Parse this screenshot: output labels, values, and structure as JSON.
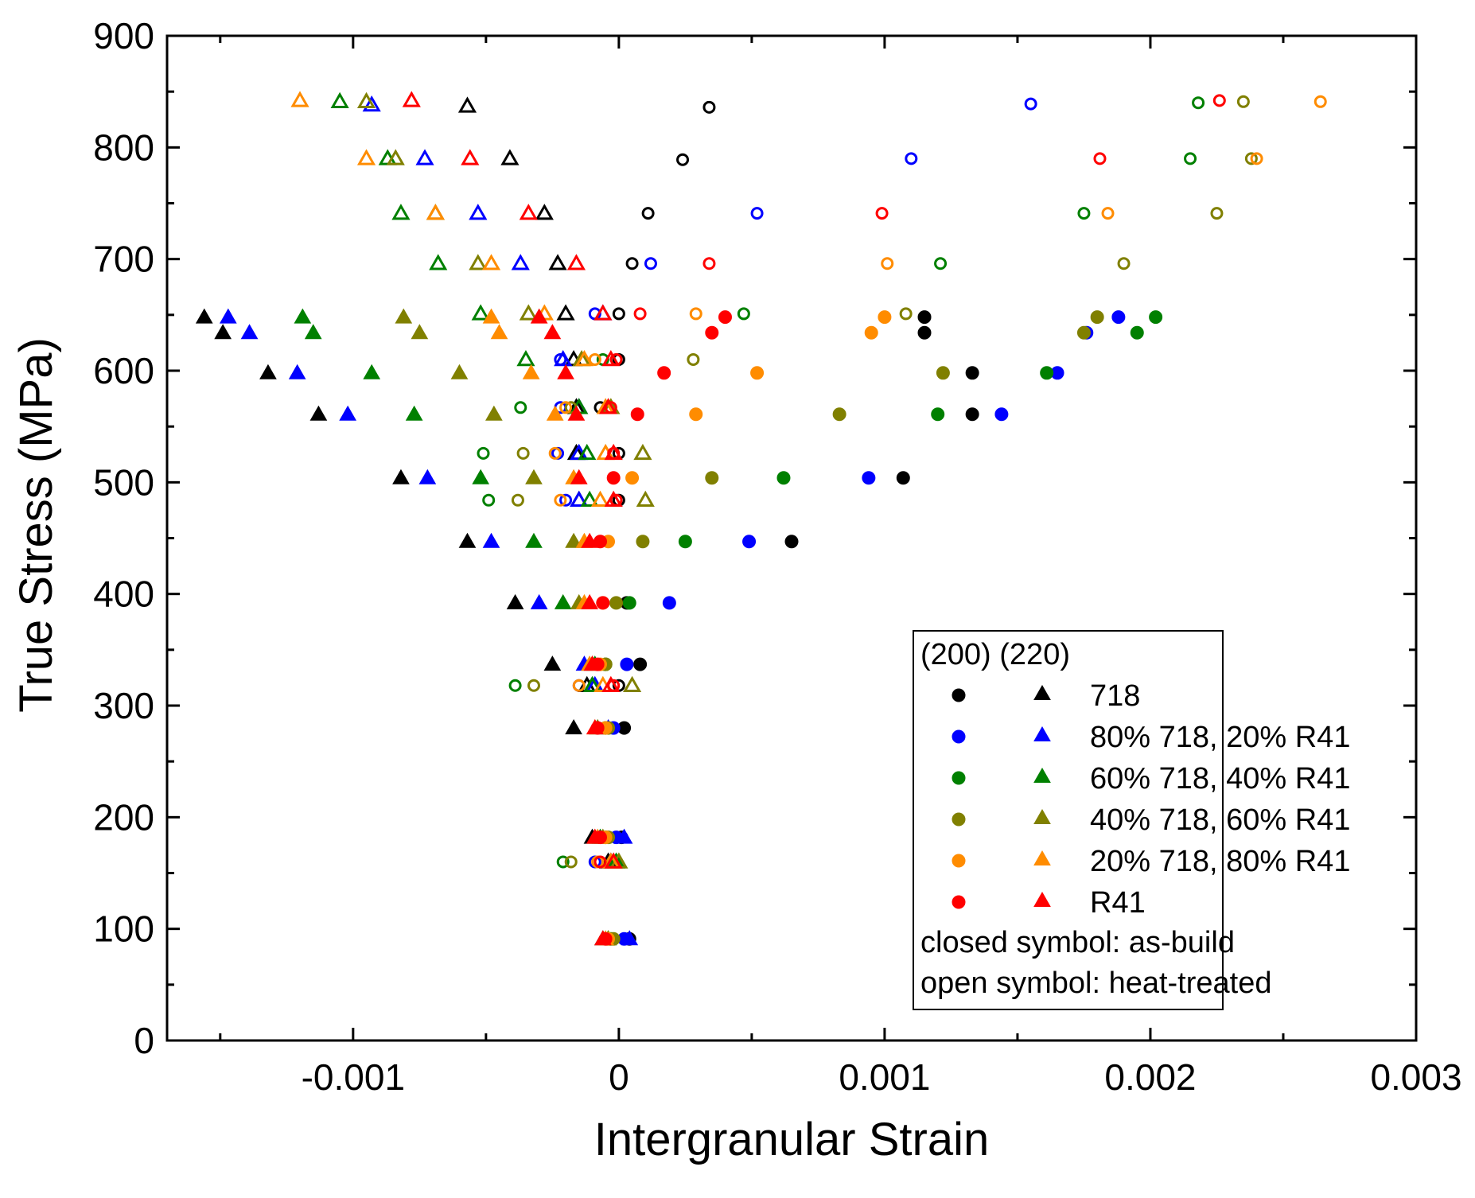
{
  "chart_data": {
    "type": "scatter",
    "title": "",
    "xlabel": "Intergranular Strain",
    "ylabel": "True Stress (MPa)",
    "xlim": [
      -0.0017,
      0.003
    ],
    "ylim": [
      0,
      900
    ],
    "xticks": [
      -0.001,
      0,
      0.001,
      0.002,
      0.003
    ],
    "xtick_labels": [
      "-0.001",
      "0",
      "0.001",
      "0.002",
      "0.003"
    ],
    "yticks": [
      0,
      100,
      200,
      300,
      400,
      500,
      600,
      700,
      800,
      900
    ],
    "ytick_labels": [
      "0",
      "100",
      "200",
      "300",
      "400",
      "500",
      "600",
      "700",
      "800",
      "900"
    ],
    "legend": {
      "placement": "bottom-right",
      "header": "(200) (220)",
      "entries": [
        "718",
        "80% 718, 20% R41",
        "60% 718, 40% R41",
        "40% 718, 60% R41",
        "20% 718, 80% R41",
        "R41"
      ],
      "note_closed": "closed symbol: as-build",
      "note_open": "open symbol: heat-treated"
    },
    "series": [
      {
        "name": "718",
        "color": "#000000",
        "as_built_200": [
          [
            4e-05,
            91
          ],
          [
            1e-05,
            182
          ],
          [
            2e-05,
            280
          ],
          [
            8e-05,
            337
          ],
          [
            3e-05,
            392
          ],
          [
            0.00065,
            447
          ],
          [
            0.00107,
            504
          ],
          [
            0.00133,
            561
          ],
          [
            0.00133,
            598
          ],
          [
            0.00115,
            634
          ],
          [
            0.00115,
            648
          ]
        ],
        "as_built_220": [
          [
            -6e-05,
            91
          ],
          [
            -0.0001,
            182
          ],
          [
            -0.00017,
            280
          ],
          [
            -0.00025,
            337
          ],
          [
            -0.00039,
            392
          ],
          [
            -0.00057,
            447
          ],
          [
            -0.00082,
            504
          ],
          [
            -0.00113,
            561
          ],
          [
            -0.00132,
            598
          ],
          [
            -0.00149,
            634
          ],
          [
            -0.00156,
            648
          ]
        ],
        "heat_treated_200": [
          [
            -2e-05,
            160
          ],
          [
            0.0,
            318
          ],
          [
            0.0,
            484
          ],
          [
            0.0,
            526
          ],
          [
            -7e-05,
            567
          ],
          [
            0.0,
            610
          ],
          [
            0.0,
            651
          ],
          [
            5e-05,
            696
          ],
          [
            0.00011,
            741
          ],
          [
            0.00024,
            789
          ],
          [
            0.00034,
            836
          ]
        ],
        "heat_treated_220": [
          [
            -4e-05,
            160
          ],
          [
            -0.00012,
            318
          ],
          [
            -0.00015,
            484
          ],
          [
            -0.00016,
            526
          ],
          [
            -0.00016,
            567
          ],
          [
            -0.00017,
            610
          ],
          [
            -0.0002,
            651
          ],
          [
            -0.00023,
            696
          ],
          [
            -0.00028,
            741
          ],
          [
            -0.00041,
            790
          ],
          [
            -0.00057,
            837
          ]
        ]
      },
      {
        "name": "80% 718, 20% R41",
        "color": "#0000ff",
        "as_built_200": [
          [
            2e-05,
            91
          ],
          [
            -1e-05,
            182
          ],
          [
            -2e-05,
            280
          ],
          [
            3e-05,
            337
          ],
          [
            0.00019,
            392
          ],
          [
            0.00049,
            447
          ],
          [
            0.00094,
            504
          ],
          [
            0.00144,
            561
          ],
          [
            0.00165,
            598
          ],
          [
            0.00176,
            634
          ],
          [
            0.00188,
            648
          ]
        ],
        "as_built_220": [
          [
            4e-05,
            91
          ],
          [
            2e-05,
            182
          ],
          [
            -4e-05,
            280
          ],
          [
            -0.00013,
            337
          ],
          [
            -0.0003,
            392
          ],
          [
            -0.00048,
            447
          ],
          [
            -0.00072,
            504
          ],
          [
            -0.00102,
            561
          ],
          [
            -0.00121,
            598
          ],
          [
            -0.00139,
            634
          ],
          [
            -0.00147,
            648
          ]
        ],
        "heat_treated_200": [
          [
            -9e-05,
            160
          ],
          [
            -0.00015,
            318
          ],
          [
            -0.0002,
            484
          ],
          [
            -0.00023,
            526
          ],
          [
            -0.00022,
            567
          ],
          [
            -0.00022,
            610
          ],
          [
            -9e-05,
            651
          ],
          [
            0.00012,
            696
          ],
          [
            0.00052,
            741
          ],
          [
            0.0011,
            790
          ],
          [
            0.00155,
            839
          ]
        ],
        "heat_treated_220": [
          [
            -3e-05,
            160
          ],
          [
            -9e-05,
            318
          ],
          [
            -0.00015,
            484
          ],
          [
            -0.00015,
            526
          ],
          [
            -0.00015,
            567
          ],
          [
            -0.00021,
            610
          ],
          [
            -6e-05,
            651
          ],
          [
            -0.00037,
            696
          ],
          [
            -0.00053,
            741
          ],
          [
            -0.00073,
            790
          ],
          [
            -0.00093,
            838
          ]
        ]
      },
      {
        "name": "60% 718, 40% R41",
        "color": "#008000",
        "as_built_200": [
          [
            -3e-05,
            91
          ],
          [
            -5e-05,
            182
          ],
          [
            -5e-05,
            280
          ],
          [
            -5e-05,
            337
          ],
          [
            4e-05,
            392
          ],
          [
            0.00025,
            447
          ],
          [
            0.00062,
            504
          ],
          [
            0.0012,
            561
          ],
          [
            0.00161,
            598
          ],
          [
            0.00195,
            634
          ],
          [
            0.00202,
            648
          ]
        ],
        "as_built_220": [
          [
            -4e-05,
            91
          ],
          [
            -7e-05,
            182
          ],
          [
            -8e-05,
            280
          ],
          [
            -9e-05,
            337
          ],
          [
            -0.00021,
            392
          ],
          [
            -0.00032,
            447
          ],
          [
            -0.00052,
            504
          ],
          [
            -0.00077,
            561
          ],
          [
            -0.00093,
            598
          ],
          [
            -0.00115,
            634
          ],
          [
            -0.00119,
            648
          ]
        ],
        "heat_treated_200": [
          [
            -0.00021,
            160
          ],
          [
            -0.00039,
            318
          ],
          [
            -0.00049,
            484
          ],
          [
            -0.00051,
            526
          ],
          [
            -0.00037,
            567
          ],
          [
            -6e-05,
            610
          ],
          [
            0.00047,
            651
          ],
          [
            0.00121,
            696
          ],
          [
            0.00175,
            741
          ],
          [
            0.00215,
            790
          ],
          [
            0.00218,
            840
          ]
        ],
        "heat_treated_220": [
          [
            -1e-05,
            160
          ],
          [
            -0.0001,
            318
          ],
          [
            -0.00011,
            484
          ],
          [
            -0.00012,
            526
          ],
          [
            -0.00015,
            567
          ],
          [
            -0.00035,
            610
          ],
          [
            -0.00052,
            651
          ],
          [
            -0.00068,
            696
          ],
          [
            -0.00082,
            741
          ],
          [
            -0.00087,
            790
          ],
          [
            -0.00105,
            841
          ]
        ]
      },
      {
        "name": "40% 718, 60% R41",
        "color": "#808000",
        "as_built_200": [
          [
            -2e-05,
            91
          ],
          [
            -4e-05,
            182
          ],
          [
            -4e-05,
            280
          ],
          [
            -5e-05,
            337
          ],
          [
            -1e-05,
            392
          ],
          [
            9e-05,
            447
          ],
          [
            0.00035,
            504
          ],
          [
            0.00083,
            561
          ],
          [
            0.00122,
            598
          ],
          [
            0.00175,
            634
          ],
          [
            0.0018,
            648
          ]
        ],
        "as_built_220": [
          [
            -4e-05,
            91
          ],
          [
            -6e-05,
            182
          ],
          [
            -8e-05,
            280
          ],
          [
            -0.0001,
            337
          ],
          [
            -0.00015,
            392
          ],
          [
            -0.00017,
            447
          ],
          [
            -0.00032,
            504
          ],
          [
            -0.00047,
            561
          ],
          [
            -0.0006,
            598
          ],
          [
            -0.00075,
            634
          ],
          [
            -0.00081,
            648
          ]
        ],
        "heat_treated_200": [
          [
            -0.00018,
            160
          ],
          [
            -0.00032,
            318
          ],
          [
            -0.00038,
            484
          ],
          [
            -0.00036,
            526
          ],
          [
            -0.00018,
            567
          ],
          [
            0.00028,
            610
          ],
          [
            0.00108,
            651
          ],
          [
            0.0019,
            696
          ],
          [
            0.00225,
            741
          ],
          [
            0.00238,
            790
          ],
          [
            0.00235,
            841
          ]
        ],
        "heat_treated_220": [
          [
            0.0,
            160
          ],
          [
            5e-05,
            318
          ],
          [
            0.0001,
            484
          ],
          [
            9e-05,
            526
          ],
          [
            -3e-05,
            567
          ],
          [
            -0.00014,
            610
          ],
          [
            -0.00034,
            651
          ],
          [
            -0.00053,
            696
          ],
          [
            -0.00069,
            741
          ],
          [
            -0.00084,
            790
          ],
          [
            -0.00095,
            841
          ]
        ]
      },
      {
        "name": "20% 718, 80% R41",
        "color": "#ff8c00",
        "as_built_200": [
          [
            -4e-05,
            91
          ],
          [
            -5e-05,
            182
          ],
          [
            -5e-05,
            280
          ],
          [
            -7e-05,
            337
          ],
          [
            -6e-05,
            392
          ],
          [
            -4e-05,
            447
          ],
          [
            5e-05,
            504
          ],
          [
            0.00029,
            561
          ],
          [
            0.00052,
            598
          ],
          [
            0.00095,
            634
          ],
          [
            0.001,
            648
          ]
        ],
        "as_built_220": [
          [
            -5e-05,
            91
          ],
          [
            -8e-05,
            182
          ],
          [
            -9e-05,
            280
          ],
          [
            -0.00011,
            337
          ],
          [
            -0.00013,
            392
          ],
          [
            -0.00013,
            447
          ],
          [
            -0.00017,
            504
          ],
          [
            -0.00024,
            561
          ],
          [
            -0.00033,
            598
          ],
          [
            -0.00045,
            634
          ],
          [
            -0.00048,
            648
          ]
        ],
        "heat_treated_200": [
          [
            -8e-05,
            160
          ],
          [
            -0.00015,
            318
          ],
          [
            -0.00022,
            484
          ],
          [
            -0.00024,
            526
          ],
          [
            -0.0002,
            567
          ],
          [
            -9e-05,
            610
          ],
          [
            0.00029,
            651
          ],
          [
            0.00101,
            696
          ],
          [
            0.00184,
            741
          ],
          [
            0.0024,
            790
          ],
          [
            0.00264,
            841
          ]
        ],
        "heat_treated_220": [
          [
            -3e-05,
            160
          ],
          [
            -6e-05,
            318
          ],
          [
            -7e-05,
            484
          ],
          [
            -5e-05,
            526
          ],
          [
            -5e-05,
            567
          ],
          [
            -0.00013,
            610
          ],
          [
            -0.00028,
            651
          ],
          [
            -0.00048,
            696
          ],
          [
            -0.00069,
            741
          ],
          [
            -0.00095,
            790
          ],
          [
            -0.0012,
            842
          ]
        ]
      },
      {
        "name": "R41",
        "color": "#ff0000",
        "as_built_200": [
          [
            -5e-05,
            91
          ],
          [
            -7e-05,
            182
          ],
          [
            -8e-05,
            280
          ],
          [
            -8e-05,
            337
          ],
          [
            -6e-05,
            392
          ],
          [
            -7e-05,
            447
          ],
          [
            -2e-05,
            504
          ],
          [
            7e-05,
            561
          ],
          [
            0.00017,
            598
          ],
          [
            0.00035,
            634
          ],
          [
            0.0004,
            648
          ]
        ],
        "as_built_220": [
          [
            -6e-05,
            91
          ],
          [
            -9e-05,
            182
          ],
          [
            -9e-05,
            280
          ],
          [
            -0.0001,
            337
          ],
          [
            -0.00011,
            392
          ],
          [
            -0.00011,
            447
          ],
          [
            -0.00015,
            504
          ],
          [
            -0.00016,
            561
          ],
          [
            -0.0002,
            598
          ],
          [
            -0.00025,
            634
          ],
          [
            -0.0003,
            648
          ]
        ],
        "heat_treated_200": [
          [
            -7e-05,
            160
          ],
          [
            -2e-05,
            318
          ],
          [
            -1e-05,
            484
          ],
          [
            -2e-05,
            526
          ],
          [
            -3e-05,
            567
          ],
          [
            -1e-05,
            610
          ],
          [
            8e-05,
            651
          ],
          [
            0.00034,
            696
          ],
          [
            0.00099,
            741
          ],
          [
            0.00181,
            790
          ],
          [
            0.00226,
            842
          ]
        ],
        "heat_treated_220": [
          [
            -2e-05,
            160
          ],
          [
            -3e-05,
            318
          ],
          [
            -2e-05,
            484
          ],
          [
            -2e-05,
            526
          ],
          [
            -4e-05,
            567
          ],
          [
            -3e-05,
            610
          ],
          [
            -6e-05,
            651
          ],
          [
            -0.00016,
            696
          ],
          [
            -0.00034,
            741
          ],
          [
            -0.00056,
            790
          ],
          [
            -0.00078,
            842
          ]
        ]
      }
    ]
  }
}
